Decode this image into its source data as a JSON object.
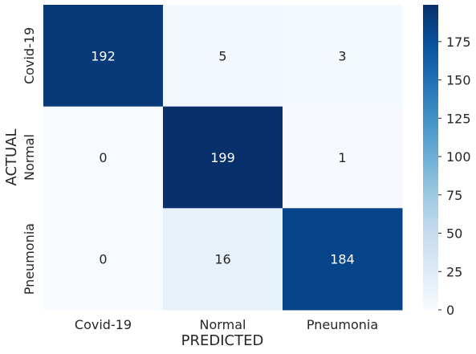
{
  "chart_data": {
    "type": "heatmap",
    "title": "",
    "xlabel": "PREDICTED",
    "ylabel": "ACTUAL",
    "x_categories": [
      "Covid-19",
      "Normal",
      "Pneumonia"
    ],
    "y_categories": [
      "Covid-19",
      "Normal",
      "Pneumonia"
    ],
    "values": [
      [
        192,
        5,
        3
      ],
      [
        0,
        199,
        1
      ],
      [
        0,
        16,
        184
      ]
    ],
    "colormap": "Blues",
    "colorbar": {
      "vmin": 0,
      "vmax": 199,
      "ticks": [
        0,
        25,
        50,
        75,
        100,
        125,
        150,
        175
      ]
    },
    "annotations": true,
    "legend": "colorbar-right"
  }
}
